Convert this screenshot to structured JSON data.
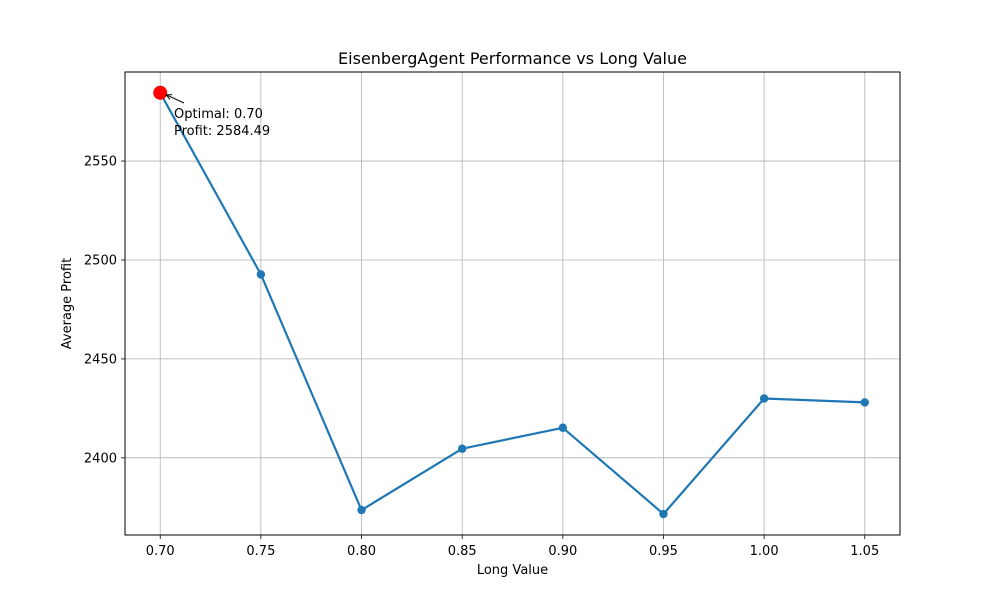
{
  "chart_data": {
    "type": "line",
    "title": "EisenbergAgent Performance vs Long Value",
    "xlabel": "Long Value",
    "ylabel": "Average Profit",
    "x": [
      0.7,
      0.75,
      0.8,
      0.85,
      0.9,
      0.95,
      1.0,
      1.05
    ],
    "series": [
      {
        "values": [
          2584.49,
          2492.7,
          2373.6,
          2404.6,
          2415.2,
          2371.6,
          2430.0,
          2428.0
        ]
      }
    ],
    "xlim": [
      0.6825,
      1.0675
    ],
    "ylim": [
      2361.0,
      2595.0
    ],
    "xticks": [
      "0.70",
      "0.75",
      "0.80",
      "0.85",
      "0.90",
      "0.95",
      "1.00",
      "1.05"
    ],
    "yticks": [
      "2400",
      "2450",
      "2500",
      "2550"
    ],
    "grid": true,
    "line_color": "#1f77b4",
    "highlight_color": "#ff0000",
    "optimal": {
      "x": 0.7,
      "y": 2584.49
    },
    "annotation": {
      "line1": "Optimal: 0.70",
      "line2": "Profit: 2584.49"
    }
  }
}
